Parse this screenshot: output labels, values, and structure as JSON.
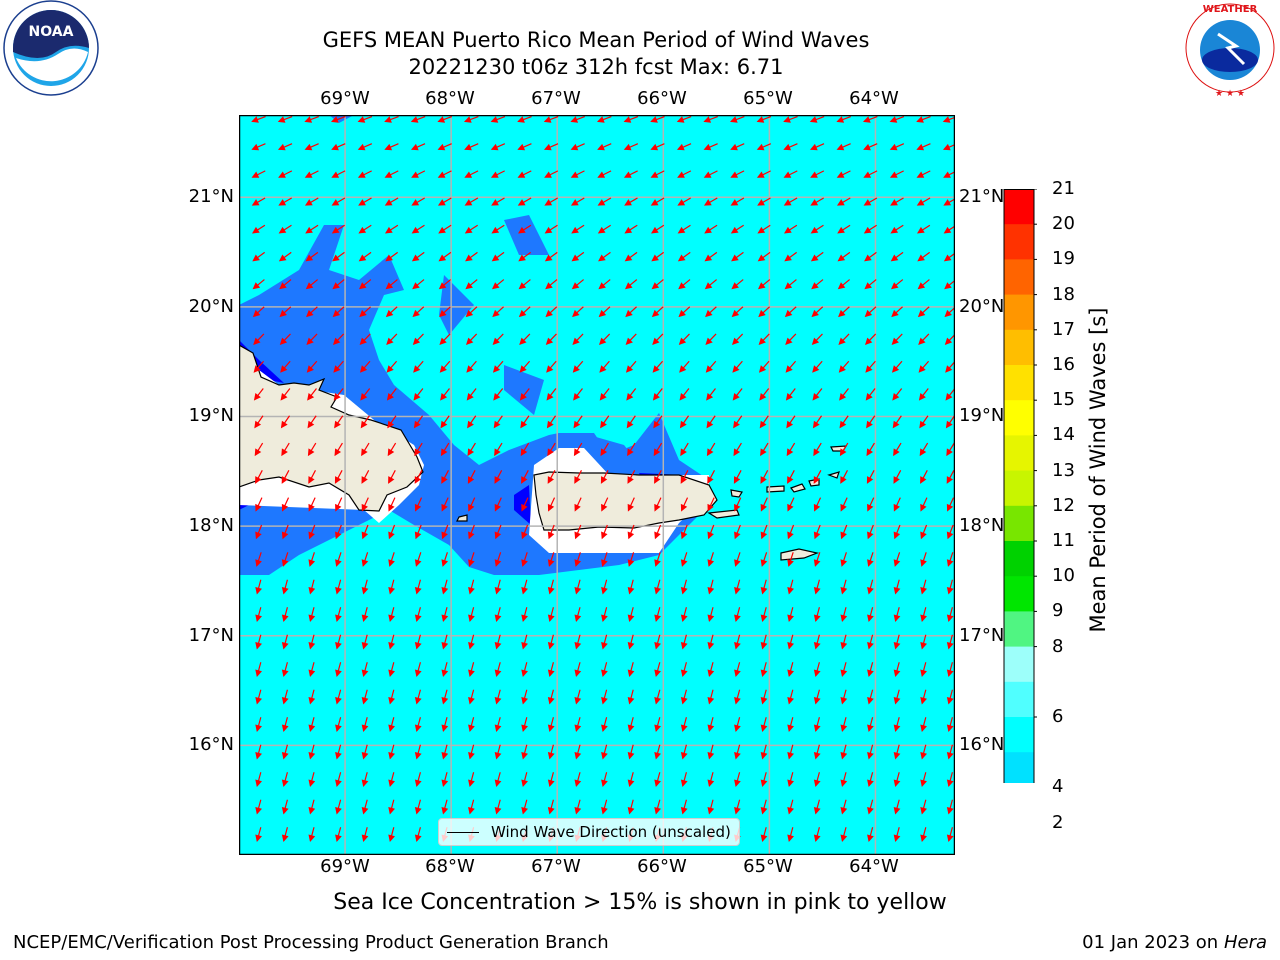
{
  "title": {
    "line1": "GEFS MEAN Puerto Rico Mean Period of Wind Waves",
    "line2": "20221230 t06z 312h fcst   Max: 6.71"
  },
  "map": {
    "lon_labels": [
      "69°W",
      "68°W",
      "67°W",
      "66°W",
      "65°W",
      "64°W"
    ],
    "lat_labels": [
      "21°N",
      "20°N",
      "19°N",
      "18°N",
      "17°N",
      "16°N"
    ],
    "lon_range": [
      -70.0,
      -63.25
    ],
    "lat_range": [
      15.0,
      21.75
    ],
    "colors": {
      "ocean_fill": "#00ffff",
      "low_period": "#1e78ff",
      "lowest_period": "#0000ff",
      "land": "#efecdc",
      "arrow": "#ff0000",
      "grid": "#b4b4b4"
    },
    "legend": {
      "label": "Wind Wave Direction (unscaled)"
    }
  },
  "colorbar": {
    "label": "Mean Period of Wind Waves [s]",
    "tick_labels": [
      "2",
      "4",
      "6",
      "8",
      "9",
      "10",
      "11",
      "12",
      "13",
      "14",
      "15",
      "16",
      "17",
      "18",
      "19",
      "20",
      "21"
    ],
    "levels": [
      2,
      4,
      5,
      6,
      7,
      8,
      9,
      10,
      11,
      12,
      13,
      14,
      15,
      16,
      17,
      18,
      19,
      20,
      21
    ],
    "colors": [
      "#0064ff",
      "#00e1ff",
      "#00ffff",
      "#50ffff",
      "#9dfffa",
      "#50f582",
      "#00e600",
      "#00d200",
      "#78e600",
      "#c8f500",
      "#e6f500",
      "#ffff00",
      "#ffe100",
      "#ffbe00",
      "#ff9600",
      "#ff6400",
      "#ff3200",
      "#ff0000"
    ],
    "under_color": "#0000ff"
  },
  "notes": {
    "sea_ice": "Sea Ice Concentration > 15% is shown in pink to yellow",
    "credit": "NCEP/EMC/Verification Post Processing Product Generation Branch",
    "date": "01 Jan 2023 on ",
    "machine": "Hera"
  },
  "logos": {
    "left": {
      "name": "noaa-logo",
      "text": "NOAA"
    },
    "right": {
      "name": "national-weather-service-logo",
      "text": "NATIONAL WEATHER SERVICE"
    }
  }
}
